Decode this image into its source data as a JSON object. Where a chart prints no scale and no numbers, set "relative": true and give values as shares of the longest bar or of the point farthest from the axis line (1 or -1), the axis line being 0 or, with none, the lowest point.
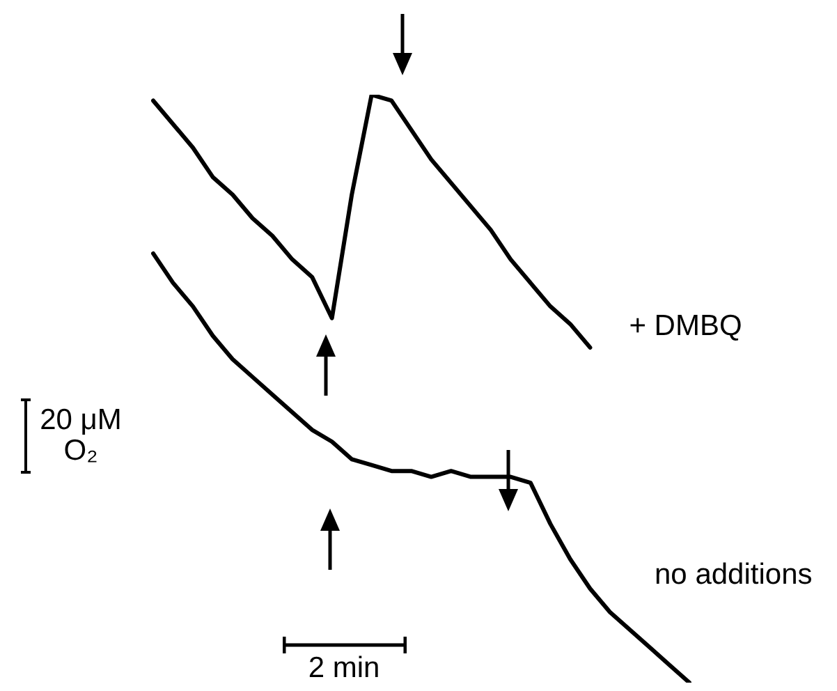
{
  "chart_data": {
    "type": "line",
    "relative": true,
    "legend": false,
    "marker": "none",
    "line_style": "solid",
    "annotations": [
      "20 μM O₂",
      "2 min"
    ],
    "categories": [
      null,
      null,
      null,
      null,
      null,
      null,
      null,
      null,
      null,
      null,
      null,
      null,
      null,
      null,
      null,
      null,
      null,
      null,
      null,
      null,
      null,
      null,
      null,
      null,
      null,
      null,
      null,
      null
    ],
    "series": [
      {
        "name": "+ DMBQ",
        "color": "#000000",
        "values": [
          0.99,
          0.95,
          0.91,
          0.86,
          0.83,
          0.79,
          0.76,
          0.72,
          0.69,
          0.62,
          0.83,
          1,
          0.99,
          0.94,
          0.89,
          0.85,
          0.81,
          0.77,
          0.72,
          0.68,
          0.64,
          0.61,
          0.57,
          null,
          null,
          null,
          null,
          null
        ]
      },
      {
        "name": "no additions",
        "color": "#000000",
        "values": [
          0.73,
          0.68,
          0.64,
          0.59,
          0.55,
          0.52,
          0.49,
          0.46,
          0.43,
          0.41,
          0.38,
          0.37,
          0.36,
          0.36,
          0.35,
          0.36,
          0.35,
          0.35,
          0.35,
          0.34,
          0.27,
          0.21,
          0.16,
          0.12,
          0.09,
          0.06,
          0.03,
          0
        ]
      }
    ]
  }
}
